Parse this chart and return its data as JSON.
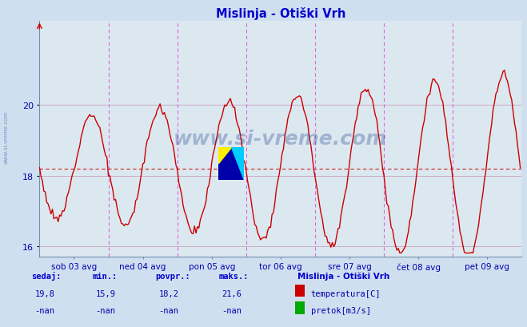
{
  "title": "Mislinja - Otiški Vrh",
  "title_color": "#0000cc",
  "bg_color": "#d0dff0",
  "plot_bg_color": "#dce8f0",
  "avg_line_value": 18.2,
  "ylim": [
    15.7,
    22.4
  ],
  "yticks": [
    16,
    18,
    20
  ],
  "n_points": 336,
  "min_val": 15.9,
  "max_val": 21.6,
  "avg_val": 18.2,
  "cur_val": 19.8,
  "tick_labels": [
    "sob 03 avg",
    "ned 04 avg",
    "pon 05 avg",
    "tor 06 avg",
    "sre 07 avg",
    "čet 08 avg",
    "pet 09 avg"
  ],
  "vline_color": "#dd66dd",
  "watermark": "www.si-vreme.com",
  "watermark_color": "#1a3a8a",
  "watermark_alpha": 0.3,
  "legend_title": "Mislinja - Otiški Vrh",
  "legend_temp_label": "temperatura[C]",
  "legend_pretok_label": "pretok[m3/s]",
  "stats_labels": [
    "sedaj:",
    "min.:",
    "povpr.:",
    "maks.:"
  ],
  "stats_values_temp": [
    "19,8",
    "15,9",
    "18,2",
    "21,6"
  ],
  "stats_values_pretok": [
    "-nan",
    "-nan",
    "-nan",
    "-nan"
  ],
  "line_color": "#cc0000",
  "line_width": 1.0
}
